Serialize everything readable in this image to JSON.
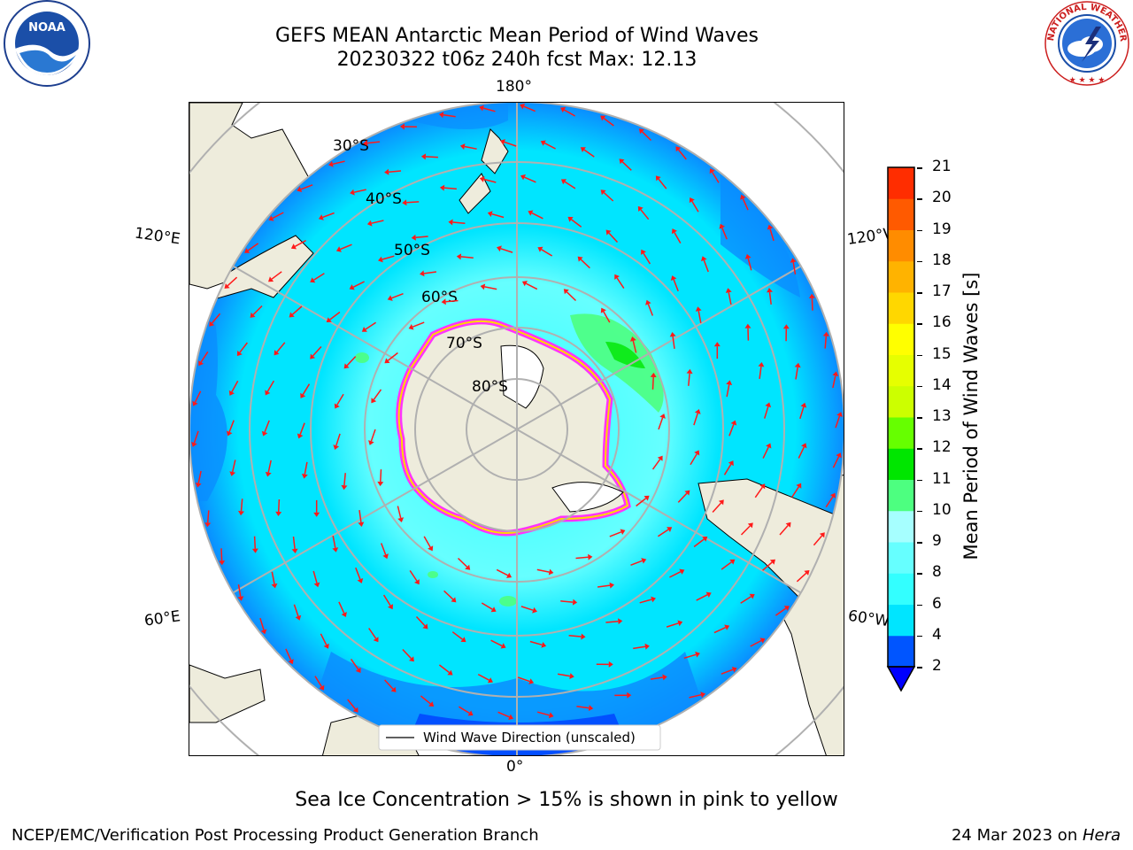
{
  "header": {
    "title_line1": "GEFS MEAN Antarctic Mean Period of Wind Waves",
    "title_line2": "20230322 t06z 240h fcst   Max: 12.13"
  },
  "logos": {
    "noaa_text": "NOAA",
    "nws_text": "NATIONAL WEATHER SERVICE"
  },
  "map": {
    "projection": "South polar stereographic",
    "longitude_labels": {
      "top": "180°",
      "bottom": "0°",
      "upper_left": "120°E",
      "upper_right": "120°W",
      "lower_left": "60°E",
      "lower_right": "60°W"
    },
    "latitude_labels": [
      "30°S",
      "40°S",
      "50°S",
      "60°S",
      "70°S",
      "80°S"
    ],
    "legend_label": "Wind Wave Direction (unscaled)",
    "arrow_color": "#ff1a1a",
    "land_color": "#eeecdc",
    "sea_ice_colors": [
      "#ff33ff",
      "#ffd700"
    ]
  },
  "colorbar": {
    "label": "Mean Period of Wind Waves [s]",
    "ticks": [
      "2",
      "4",
      "6",
      "8",
      "9",
      "10",
      "11",
      "12",
      "13",
      "14",
      "15",
      "16",
      "17",
      "18",
      "19",
      "20",
      "21"
    ],
    "colors": [
      "#0055ff",
      "#00e5ff",
      "#33ffff",
      "#66ffff",
      "#a6ffff",
      "#4dff80",
      "#00e600",
      "#66ff00",
      "#ccff00",
      "#e6ff00",
      "#ffff00",
      "#ffd700",
      "#ffb300",
      "#ff8c00",
      "#ff5a00",
      "#ff2d00",
      "#ff0000"
    ],
    "extend_color": "#0000ff"
  },
  "caption": "Sea Ice Concentration > 15% is shown in pink to yellow",
  "footer": {
    "left": "NCEP/EMC/Verification Post Processing Product Generation Branch",
    "right_prefix": "24 Mar 2023 on ",
    "right_machine": "Hera"
  }
}
